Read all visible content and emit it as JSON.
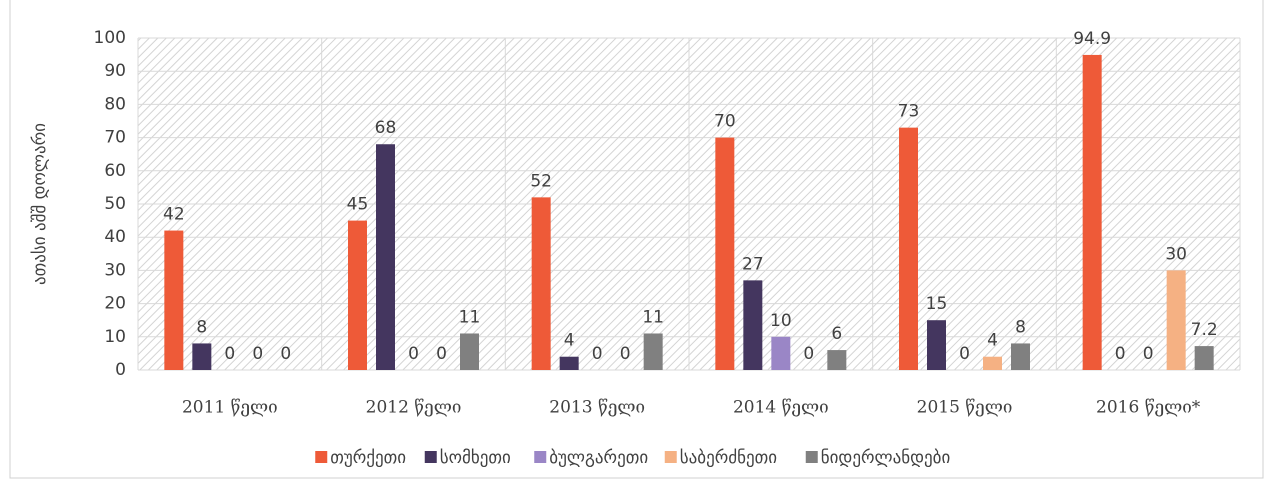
{
  "chart_data": {
    "type": "bar",
    "y_label": "ათასი აშშ დოლარი",
    "categories": [
      "2011 წელი",
      "2012 წელი",
      "2013 წელი",
      "2014 წელი",
      "2015 წელი",
      "2016 წელი*"
    ],
    "series": [
      {
        "name": "თურქეთი",
        "color": "#ee5a38",
        "values": [
          42,
          45,
          52,
          70,
          73,
          94.9
        ]
      },
      {
        "name": "სომხეთი",
        "color": "#44365f",
        "values": [
          8,
          68,
          4,
          27,
          15,
          0
        ]
      },
      {
        "name": "ბულგარეთი",
        "color": "#9a86c6",
        "values": [
          0,
          0,
          0,
          10,
          0,
          0
        ]
      },
      {
        "name": "საბერძნეთი",
        "color": "#f5b183",
        "values": [
          0,
          0,
          0,
          0,
          4,
          30
        ]
      },
      {
        "name": "ნიდერლანდები",
        "color": "#808080",
        "values": [
          0,
          11,
          11,
          6,
          8,
          7.2
        ]
      }
    ],
    "ylim": [
      0,
      100
    ],
    "yticks": [
      0,
      10,
      20,
      30,
      40,
      50,
      60,
      70,
      80,
      90,
      100
    ],
    "grid": true,
    "legend": "bottom"
  }
}
